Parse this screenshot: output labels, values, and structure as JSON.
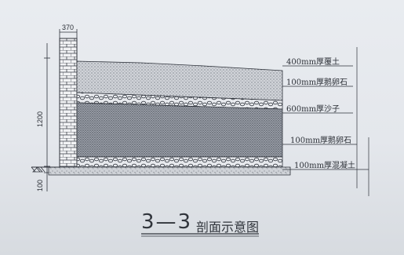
{
  "diagram": {
    "section_number": "3—3",
    "section_caption": "剖面示意图",
    "dimensions": {
      "wall_width": "370",
      "height": "1200",
      "base": "100"
    },
    "layers": [
      {
        "label": "400mm厚覆土"
      },
      {
        "label": "100mm厚鹅卵石"
      },
      {
        "label": "600mm厚沙子"
      },
      {
        "label": "100mm厚鹅卵石"
      },
      {
        "label": "100mm厚混凝土"
      }
    ]
  }
}
